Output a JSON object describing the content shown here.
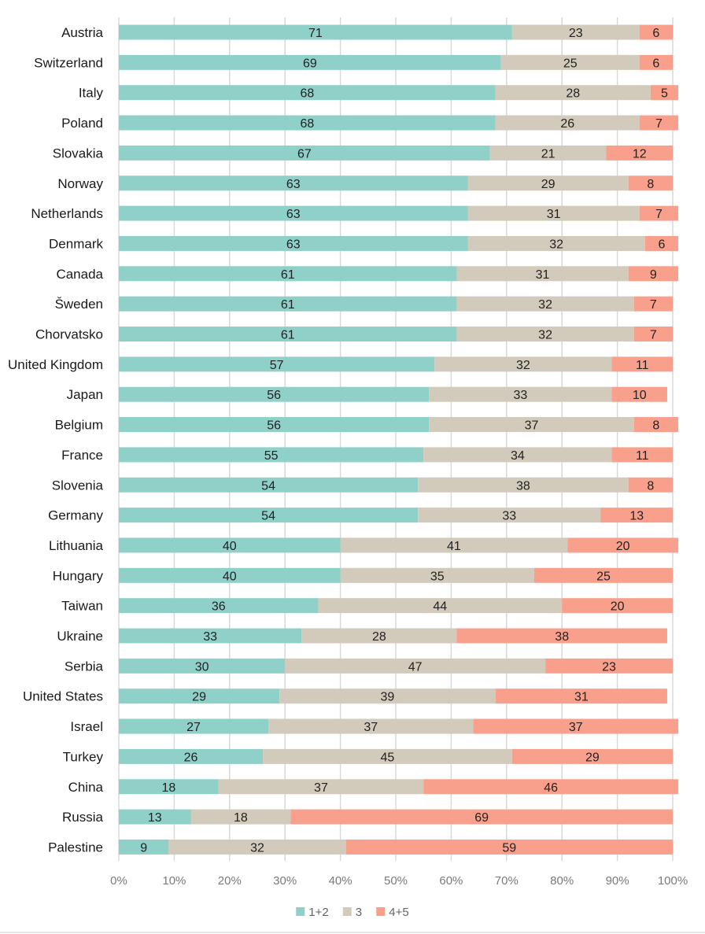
{
  "chart_data": {
    "type": "bar",
    "orientation": "horizontal",
    "stacked": "percent",
    "title": "",
    "xlabel": "",
    "ylabel": "",
    "xlim": [
      0,
      100
    ],
    "grid": true,
    "legend_position": "bottom-center",
    "x_ticks": [
      "0%",
      "10%",
      "20%",
      "30%",
      "40%",
      "50%",
      "60%",
      "70%",
      "80%",
      "90%",
      "100%"
    ],
    "categories": [
      "Austria",
      "Switzerland",
      "Italy",
      "Poland",
      "Slovakia",
      "Norway",
      "Netherlands",
      "Denmark",
      "Canada",
      "Šweden",
      "Chorvatsko",
      "United Kingdom",
      "Japan",
      "Belgium",
      "France",
      "Slovenia",
      "Germany",
      "Lithuania",
      "Hungary",
      "Taiwan",
      "Ukraine",
      "Serbia",
      "United States",
      "Israel",
      "Turkey",
      "China",
      "Russia",
      "Palestine"
    ],
    "series": [
      {
        "name": "1+2",
        "color": "#8fd0c8",
        "values": [
          71,
          69,
          68,
          68,
          67,
          63,
          63,
          63,
          61,
          61,
          61,
          57,
          56,
          56,
          55,
          54,
          54,
          40,
          40,
          36,
          33,
          30,
          29,
          27,
          26,
          18,
          13,
          9
        ]
      },
      {
        "name": "3",
        "color": "#d2cabb",
        "values": [
          23,
          25,
          28,
          26,
          21,
          29,
          31,
          32,
          31,
          32,
          32,
          32,
          33,
          37,
          34,
          38,
          33,
          41,
          35,
          44,
          28,
          47,
          39,
          37,
          45,
          37,
          18,
          32
        ]
      },
      {
        "name": "4+5",
        "color": "#f9a08c",
        "values": [
          6,
          6,
          5,
          7,
          12,
          8,
          7,
          6,
          9,
          7,
          7,
          11,
          10,
          8,
          11,
          8,
          13,
          20,
          25,
          20,
          38,
          23,
          31,
          37,
          29,
          46,
          69,
          59
        ]
      }
    ]
  }
}
